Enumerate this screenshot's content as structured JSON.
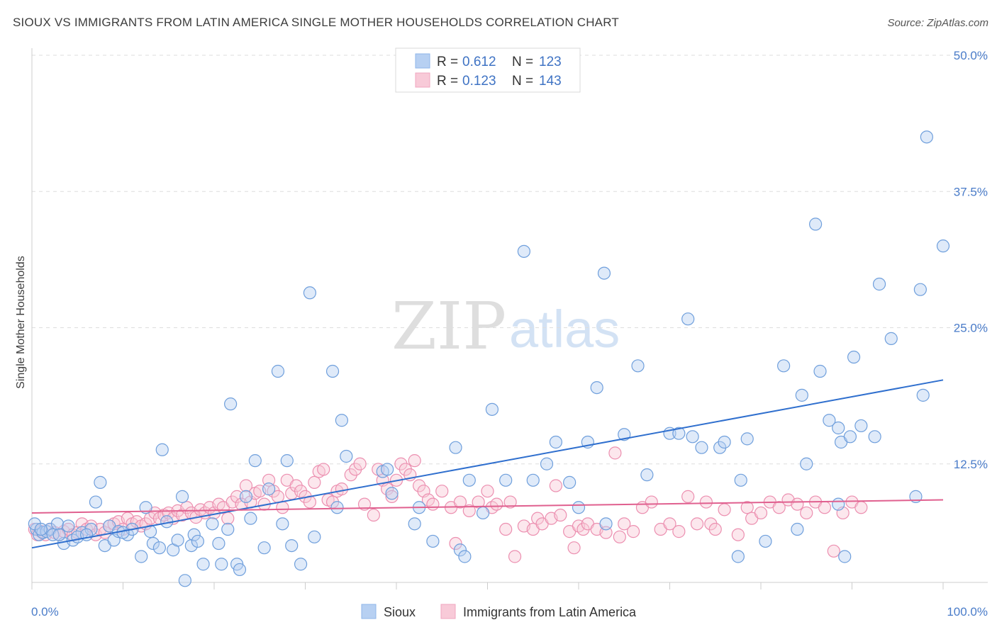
{
  "header": {
    "title": "SIOUX VS IMMIGRANTS FROM LATIN AMERICA SINGLE MOTHER HOUSEHOLDS CORRELATION CHART",
    "source": "Source: ZipAtlas.com"
  },
  "watermark": {
    "zip": "ZIP",
    "atlas": "atlas"
  },
  "legend": {
    "r_label": "R =",
    "n_label": "N =",
    "rows": [
      {
        "r": "0.612",
        "n": "123",
        "color": "#8fb6ea",
        "fill": "#b7d0f2"
      },
      {
        "r": "0.123",
        "n": "143",
        "color": "#f0a5bf",
        "fill": "#f8cad8"
      }
    ]
  },
  "bottom_legend": {
    "items": [
      {
        "label": "Sioux",
        "fill": "#b7d0f2",
        "stroke": "#8fb6ea"
      },
      {
        "label": "Immigrants from Latin America",
        "fill": "#f8cad8",
        "stroke": "#f0a5bf"
      }
    ]
  },
  "chart_data": {
    "type": "scatter",
    "title": "SIOUX VS IMMIGRANTS FROM LATIN AMERICA SINGLE MOTHER HOUSEHOLDS CORRELATION CHART",
    "xlabel": "",
    "ylabel": "Single Mother Households",
    "xlim": [
      0,
      100
    ],
    "ylim": [
      0,
      50
    ],
    "x_tick_labels": [
      "0.0%",
      "100.0%"
    ],
    "y_ticks": [
      12.5,
      25.0,
      37.5,
      50.0
    ],
    "y_tick_labels": [
      "12.5%",
      "25.0%",
      "37.5%",
      "50.0%"
    ],
    "grid": true,
    "series": [
      {
        "name": "Sioux",
        "color": "#6f9fdc",
        "fill": "#b7d0f2",
        "trend": {
          "x0": 0,
          "y0": 4.8,
          "x1": 100,
          "y1": 20.2,
          "color": "#2f6fce"
        },
        "points": [
          [
            0.5,
            6.5
          ],
          [
            0.8,
            6.0
          ],
          [
            1.2,
            6.2
          ],
          [
            1.6,
            6.3
          ],
          [
            2.0,
            6.5
          ],
          [
            2.3,
            6.0
          ],
          [
            2.8,
            7.0
          ],
          [
            3.5,
            5.2
          ],
          [
            4.0,
            6.8
          ],
          [
            4.5,
            5.5
          ],
          [
            5.5,
            6.2
          ],
          [
            6.5,
            6.5
          ],
          [
            7.0,
            9.0
          ],
          [
            7.5,
            10.8
          ],
          [
            8.0,
            5.0
          ],
          [
            8.5,
            6.8
          ],
          [
            9.0,
            5.5
          ],
          [
            9.5,
            6.3
          ],
          [
            10.5,
            6.0
          ],
          [
            11.0,
            6.5
          ],
          [
            12.0,
            4.0
          ],
          [
            12.5,
            8.5
          ],
          [
            13.0,
            6.3
          ],
          [
            13.3,
            5.2
          ],
          [
            14.0,
            4.8
          ],
          [
            14.3,
            13.8
          ],
          [
            14.8,
            7.2
          ],
          [
            15.5,
            4.6
          ],
          [
            16.0,
            5.5
          ],
          [
            16.5,
            9.5
          ],
          [
            16.8,
            1.8
          ],
          [
            17.5,
            5.0
          ],
          [
            17.8,
            6.0
          ],
          [
            18.2,
            5.4
          ],
          [
            18.8,
            3.3
          ],
          [
            19.8,
            7.0
          ],
          [
            20.5,
            5.2
          ],
          [
            20.8,
            3.3
          ],
          [
            21.5,
            6.5
          ],
          [
            21.8,
            18.0
          ],
          [
            22.5,
            3.3
          ],
          [
            22.8,
            2.8
          ],
          [
            23.5,
            9.5
          ],
          [
            24.0,
            7.5
          ],
          [
            24.5,
            12.8
          ],
          [
            25.5,
            4.8
          ],
          [
            26.0,
            10.2
          ],
          [
            27.0,
            21.0
          ],
          [
            27.5,
            7.0
          ],
          [
            28.0,
            12.8
          ],
          [
            28.5,
            5.0
          ],
          [
            29.5,
            3.3
          ],
          [
            30.5,
            28.2
          ],
          [
            31.0,
            5.8
          ],
          [
            33.0,
            21.0
          ],
          [
            33.5,
            8.5
          ],
          [
            34.0,
            16.5
          ],
          [
            34.5,
            13.2
          ],
          [
            38.5,
            11.8
          ],
          [
            39.0,
            12.0
          ],
          [
            39.5,
            9.8
          ],
          [
            42.0,
            7.0
          ],
          [
            42.5,
            8.5
          ],
          [
            44.0,
            5.4
          ],
          [
            46.5,
            14.0
          ],
          [
            47.0,
            4.6
          ],
          [
            47.5,
            4.0
          ],
          [
            48.0,
            11.0
          ],
          [
            49.5,
            8.0
          ],
          [
            50.5,
            17.5
          ],
          [
            52.0,
            11.0
          ],
          [
            54.0,
            32.0
          ],
          [
            55.0,
            11.0
          ],
          [
            56.5,
            12.5
          ],
          [
            57.5,
            14.5
          ],
          [
            59.0,
            10.8
          ],
          [
            60.0,
            8.5
          ],
          [
            61.0,
            14.5
          ],
          [
            62.0,
            19.5
          ],
          [
            62.8,
            30.0
          ],
          [
            63.0,
            7.0
          ],
          [
            65.0,
            15.2
          ],
          [
            66.5,
            21.5
          ],
          [
            67.5,
            11.5
          ],
          [
            70.0,
            15.3
          ],
          [
            71.0,
            15.3
          ],
          [
            72.0,
            25.8
          ],
          [
            72.5,
            15.0
          ],
          [
            73.5,
            14.0
          ],
          [
            75.5,
            14.0
          ],
          [
            76.0,
            14.5
          ],
          [
            77.5,
            4.0
          ],
          [
            77.8,
            11.0
          ],
          [
            78.5,
            14.8
          ],
          [
            80.5,
            5.4
          ],
          [
            82.5,
            21.5
          ],
          [
            84.0,
            6.5
          ],
          [
            84.5,
            18.8
          ],
          [
            85.0,
            12.5
          ],
          [
            86.0,
            34.5
          ],
          [
            86.5,
            21.0
          ],
          [
            87.5,
            16.5
          ],
          [
            88.5,
            15.8
          ],
          [
            88.5,
            8.8
          ],
          [
            88.8,
            14.5
          ],
          [
            89.2,
            4.0
          ],
          [
            89.8,
            15.0
          ],
          [
            90.2,
            22.3
          ],
          [
            91.0,
            16.0
          ],
          [
            92.5,
            15.0
          ],
          [
            93.0,
            29.0
          ],
          [
            94.3,
            24.0
          ],
          [
            97.0,
            9.5
          ],
          [
            97.5,
            28.5
          ],
          [
            97.8,
            18.8
          ],
          [
            98.2,
            42.5
          ],
          [
            100.0,
            32.5
          ],
          [
            0.3,
            7.0
          ],
          [
            1.0,
            6.5
          ],
          [
            3.0,
            6.0
          ],
          [
            5.0,
            5.8
          ],
          [
            10.0,
            6.2
          ],
          [
            6.0,
            6.0
          ]
        ]
      },
      {
        "name": "Immigrants from Latin America",
        "color": "#ec8fb0",
        "fill": "#f8cad8",
        "trend": {
          "x0": 0,
          "y0": 8.0,
          "x1": 100,
          "y1": 9.2,
          "color": "#e0608f"
        },
        "points": [
          [
            0.3,
            6.5
          ],
          [
            0.6,
            6.0
          ],
          [
            1.0,
            6.3
          ],
          [
            1.5,
            6.0
          ],
          [
            2.0,
            6.5
          ],
          [
            2.5,
            6.2
          ],
          [
            3.0,
            6.0
          ],
          [
            3.5,
            6.3
          ],
          [
            4.0,
            6.5
          ],
          [
            4.5,
            6.0
          ],
          [
            5.0,
            6.2
          ],
          [
            5.5,
            7.0
          ],
          [
            6.0,
            6.5
          ],
          [
            6.5,
            6.8
          ],
          [
            7.0,
            6.0
          ],
          [
            7.5,
            6.5
          ],
          [
            8.0,
            6.2
          ],
          [
            8.5,
            6.8
          ],
          [
            9.0,
            7.0
          ],
          [
            9.5,
            7.2
          ],
          [
            10.0,
            6.5
          ],
          [
            10.5,
            7.5
          ],
          [
            11.0,
            7.0
          ],
          [
            11.5,
            7.2
          ],
          [
            12.0,
            6.8
          ],
          [
            12.5,
            7.0
          ],
          [
            13.0,
            7.5
          ],
          [
            13.5,
            8.0
          ],
          [
            14.0,
            7.5
          ],
          [
            14.5,
            7.8
          ],
          [
            15.0,
            8.0
          ],
          [
            15.5,
            7.5
          ],
          [
            16.0,
            8.2
          ],
          [
            16.5,
            7.8
          ],
          [
            17.0,
            8.5
          ],
          [
            17.5,
            8.0
          ],
          [
            18.0,
            7.6
          ],
          [
            18.5,
            8.3
          ],
          [
            19.0,
            8.0
          ],
          [
            19.5,
            8.5
          ],
          [
            20.0,
            8.0
          ],
          [
            20.5,
            8.8
          ],
          [
            21.0,
            8.5
          ],
          [
            21.5,
            7.5
          ],
          [
            22.0,
            9.0
          ],
          [
            22.5,
            9.5
          ],
          [
            23.0,
            8.8
          ],
          [
            23.5,
            10.5
          ],
          [
            24.0,
            9.0
          ],
          [
            24.5,
            9.8
          ],
          [
            25.0,
            10.0
          ],
          [
            25.5,
            8.8
          ],
          [
            26.0,
            11.0
          ],
          [
            26.5,
            10.0
          ],
          [
            27.0,
            9.5
          ],
          [
            27.5,
            8.5
          ],
          [
            28.0,
            11.0
          ],
          [
            28.5,
            9.8
          ],
          [
            29.0,
            10.5
          ],
          [
            29.5,
            10.0
          ],
          [
            30.0,
            9.5
          ],
          [
            30.5,
            9.0
          ],
          [
            31.0,
            10.8
          ],
          [
            31.5,
            11.8
          ],
          [
            32.0,
            12.0
          ],
          [
            32.5,
            9.2
          ],
          [
            33.0,
            9.0
          ],
          [
            33.5,
            10.0
          ],
          [
            34.0,
            10.2
          ],
          [
            35.0,
            11.5
          ],
          [
            35.5,
            12.0
          ],
          [
            36.0,
            12.5
          ],
          [
            36.5,
            8.8
          ],
          [
            37.5,
            7.8
          ],
          [
            38.0,
            12.0
          ],
          [
            38.5,
            11.0
          ],
          [
            39.0,
            10.2
          ],
          [
            39.5,
            9.5
          ],
          [
            40.0,
            11.0
          ],
          [
            40.5,
            12.5
          ],
          [
            41.0,
            12.0
          ],
          [
            41.5,
            11.5
          ],
          [
            42.0,
            12.8
          ],
          [
            42.5,
            10.5
          ],
          [
            43.0,
            10.0
          ],
          [
            43.5,
            9.2
          ],
          [
            44.0,
            8.8
          ],
          [
            45.0,
            10.0
          ],
          [
            46.0,
            8.5
          ],
          [
            46.5,
            5.2
          ],
          [
            47.0,
            9.0
          ],
          [
            48.0,
            8.2
          ],
          [
            49.0,
            9.0
          ],
          [
            50.0,
            10.0
          ],
          [
            50.5,
            8.5
          ],
          [
            51.0,
            8.8
          ],
          [
            52.0,
            6.5
          ],
          [
            52.5,
            9.0
          ],
          [
            53.0,
            4.0
          ],
          [
            54.0,
            6.8
          ],
          [
            55.0,
            6.5
          ],
          [
            55.5,
            7.5
          ],
          [
            56.0,
            7.0
          ],
          [
            57.0,
            7.5
          ],
          [
            57.5,
            10.5
          ],
          [
            58.0,
            7.8
          ],
          [
            59.0,
            6.3
          ],
          [
            59.5,
            4.8
          ],
          [
            60.0,
            6.8
          ],
          [
            60.5,
            6.5
          ],
          [
            61.0,
            7.0
          ],
          [
            62.0,
            6.5
          ],
          [
            63.0,
            6.2
          ],
          [
            64.0,
            13.5
          ],
          [
            64.5,
            5.8
          ],
          [
            65.0,
            7.0
          ],
          [
            66.0,
            6.3
          ],
          [
            67.0,
            8.5
          ],
          [
            68.0,
            9.0
          ],
          [
            69.0,
            6.5
          ],
          [
            70.0,
            7.0
          ],
          [
            71.0,
            6.3
          ],
          [
            72.0,
            9.5
          ],
          [
            73.0,
            7.0
          ],
          [
            74.0,
            9.0
          ],
          [
            74.5,
            7.0
          ],
          [
            75.0,
            6.5
          ],
          [
            76.0,
            8.3
          ],
          [
            77.5,
            6.0
          ],
          [
            78.5,
            8.5
          ],
          [
            79.0,
            7.5
          ],
          [
            80.0,
            8.0
          ],
          [
            81.0,
            9.0
          ],
          [
            82.0,
            8.5
          ],
          [
            83.0,
            9.2
          ],
          [
            84.0,
            8.8
          ],
          [
            85.0,
            8.0
          ],
          [
            86.0,
            9.0
          ],
          [
            87.0,
            8.5
          ],
          [
            88.0,
            4.5
          ],
          [
            89.0,
            8.0
          ],
          [
            90.0,
            9.0
          ],
          [
            91.0,
            8.5
          ]
        ]
      }
    ]
  }
}
